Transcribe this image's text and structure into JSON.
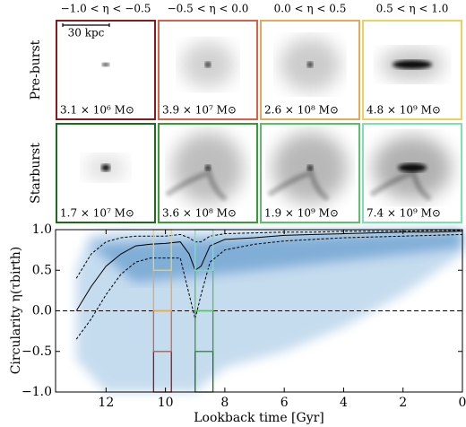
{
  "panels": {
    "columns": [
      "−1.0 < η < −0.5",
      "−0.5 < η < 0.0",
      "0.0 < η < 0.5",
      "0.5 < η < 1.0"
    ],
    "scale_bar": "30 kpc",
    "rows": [
      {
        "label": "Pre-burst",
        "colors": [
          "#8b1a1a",
          "#d9614a",
          "#e8a85a",
          "#ecd060"
        ],
        "masses": [
          "3.1 × 10⁶ M⊙",
          "3.9 × 10⁷ M⊙",
          "2.6 × 10⁸ M⊙",
          "4.8 × 10⁹ M⊙"
        ]
      },
      {
        "label": "Starburst",
        "colors": [
          "#1e6b1e",
          "#3a9a3a",
          "#5cbf6a",
          "#7ee0b0"
        ],
        "masses": [
          "1.7 × 10⁷ M⊙",
          "3.6 × 10⁸ M⊙",
          "1.9 × 10⁹ M⊙",
          "7.4 × 10⁹ M⊙"
        ]
      }
    ]
  },
  "chart_data": {
    "type": "line",
    "x_label": "Lookback time [Gyr]",
    "y_label": "Circularity η(τbirth)",
    "x": [
      13.0,
      12.5,
      12.0,
      11.5,
      11.0,
      10.5,
      10.0,
      9.5,
      9.2,
      9.0,
      8.8,
      8.5,
      8.0,
      7,
      6,
      5,
      4,
      3,
      2,
      1,
      0
    ],
    "series": [
      {
        "style": "solid",
        "color": "#000000",
        "values": [
          0.0,
          0.3,
          0.55,
          0.7,
          0.8,
          0.82,
          0.83,
          0.85,
          0.7,
          0.5,
          0.55,
          0.8,
          0.88,
          0.9,
          0.93,
          0.94,
          0.95,
          0.96,
          0.97,
          0.97,
          0.98
        ]
      },
      {
        "style": "dashed",
        "color": "#000000",
        "values": [
          0.4,
          0.7,
          0.85,
          0.9,
          0.92,
          0.92,
          0.92,
          0.94,
          0.9,
          0.85,
          0.85,
          0.92,
          0.95,
          0.96,
          0.97,
          0.97,
          0.98,
          0.98,
          0.98,
          0.99,
          0.99
        ]
      },
      {
        "style": "dashed",
        "color": "#000000",
        "values": [
          -0.35,
          -0.1,
          0.2,
          0.45,
          0.6,
          0.65,
          0.65,
          0.65,
          0.2,
          -0.1,
          0.2,
          0.6,
          0.75,
          0.82,
          0.86,
          0.88,
          0.9,
          0.91,
          0.92,
          0.93,
          0.94
        ]
      }
    ],
    "hline": 0,
    "windows": [
      {
        "range": [
          10.4,
          9.8
        ]
      },
      {
        "range": [
          9.0,
          8.4
        ]
      }
    ],
    "bins": [
      -1,
      -0.5,
      0,
      0.5,
      1
    ],
    "xlim": [
      13.7,
      0
    ],
    "ylim": [
      -1,
      1
    ],
    "xticks": [
      12,
      10,
      8,
      6,
      4,
      2,
      0
    ],
    "yticks": [
      {
        "value": -1,
        "label": "−1.0"
      },
      {
        "value": -0.5,
        "label": "−0.5"
      },
      {
        "value": 0,
        "label": "0.0"
      },
      {
        "value": 0.5,
        "label": "0.5"
      },
      {
        "value": 1,
        "label": "1.0"
      }
    ]
  }
}
